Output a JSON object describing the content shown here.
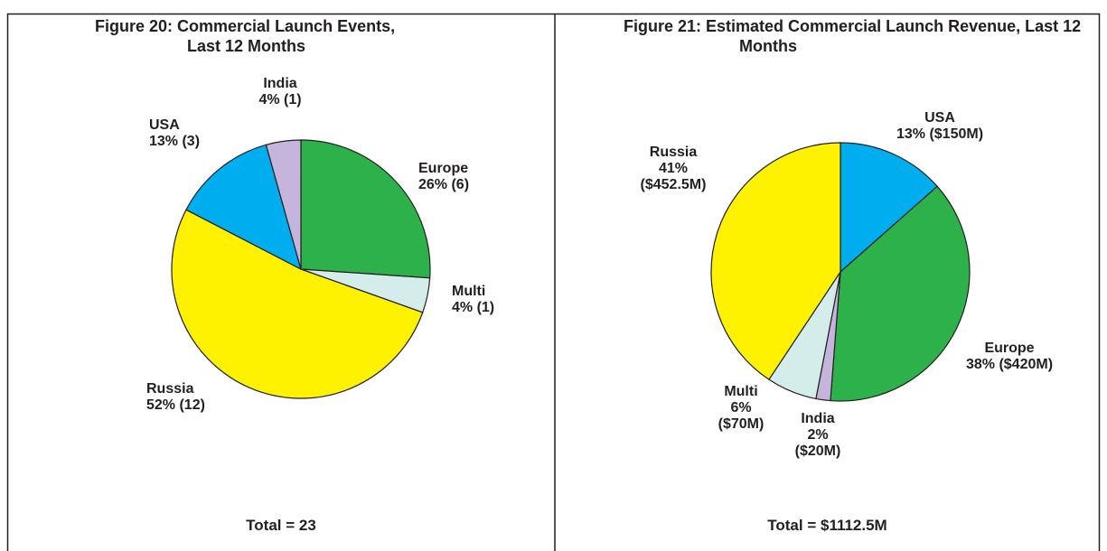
{
  "chart_data": [
    {
      "type": "pie",
      "title": "Figure 20: Commercial Launch Events, Last 12 Months",
      "categories": [
        "Europe",
        "Multi",
        "Russia",
        "USA",
        "India"
      ],
      "values": [
        6,
        1,
        12,
        3,
        1
      ],
      "value_labels": [
        "26% (6)",
        "4% (1)",
        "52% (12)",
        "13% (3)",
        "4% (1)"
      ],
      "colors": [
        "#2db14b",
        "#d4ecea",
        "#fff200",
        "#00aeef",
        "#c5b5dc"
      ],
      "annotation": "Total = 23"
    },
    {
      "type": "pie",
      "title": "Figure 21: Estimated Commercial Launch Revenue, Last 12 Months",
      "categories": [
        "USA",
        "Europe",
        "India",
        "Multi",
        "Russia"
      ],
      "values": [
        150,
        420,
        20,
        70,
        452.5
      ],
      "value_labels": [
        "13% ($150M)",
        "38% ($420M)",
        "2% ($20M)",
        "6% ($70M)",
        "41% ($452.5M)"
      ],
      "colors": [
        "#00aeef",
        "#2db14b",
        "#c5b5dc",
        "#d4ecea",
        "#fff200"
      ],
      "annotation": "Total = $1112.5M"
    }
  ]
}
